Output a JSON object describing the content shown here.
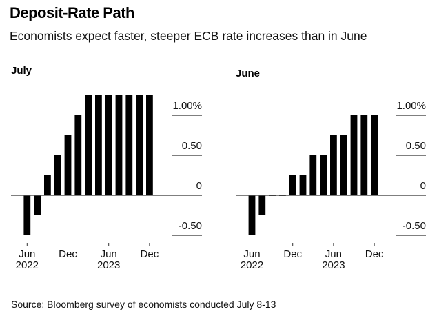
{
  "header": {
    "title": "Deposit-Rate Path",
    "subtitle": "Economists expect faster, steeper ECB rate increases than in June"
  },
  "footer": {
    "source": "Source: Bloomberg survey of economists conducted July 8-13"
  },
  "chart_data": [
    {
      "type": "bar",
      "title": "July",
      "xlabel": "",
      "ylabel": "",
      "unit": "%",
      "ylim": [
        -0.5,
        1.25
      ],
      "y_ticks": [
        {
          "value": 1.0,
          "label": "1.00%"
        },
        {
          "value": 0.5,
          "label": "0.50"
        },
        {
          "value": 0,
          "label": "0"
        },
        {
          "value": -0.5,
          "label": "-0.50"
        }
      ],
      "x_ticks": [
        {
          "index": 0,
          "label": "Jun",
          "sublabel": "2022"
        },
        {
          "index": 4,
          "label": "Dec",
          "sublabel": ""
        },
        {
          "index": 8,
          "label": "Jun",
          "sublabel": "2023"
        },
        {
          "index": 12,
          "label": "Dec",
          "sublabel": ""
        }
      ],
      "values": [
        -0.5,
        -0.25,
        0.25,
        0.5,
        0.75,
        1.0,
        1.25,
        1.25,
        1.25,
        1.25,
        1.25,
        1.25,
        1.25
      ],
      "bar_color": "#000000",
      "axis_position": "right",
      "grid": false
    },
    {
      "type": "bar",
      "title": "June",
      "xlabel": "",
      "ylabel": "",
      "unit": "%",
      "ylim": [
        -0.5,
        1.25
      ],
      "y_ticks": [
        {
          "value": 1.0,
          "label": "1.00%"
        },
        {
          "value": 0.5,
          "label": "0.50"
        },
        {
          "value": 0,
          "label": "0"
        },
        {
          "value": -0.5,
          "label": "-0.50"
        }
      ],
      "x_ticks": [
        {
          "index": 0,
          "label": "Jun",
          "sublabel": "2022"
        },
        {
          "index": 4,
          "label": "Dec",
          "sublabel": ""
        },
        {
          "index": 8,
          "label": "Jun",
          "sublabel": "2023"
        },
        {
          "index": 12,
          "label": "Dec",
          "sublabel": ""
        }
      ],
      "values": [
        -0.5,
        -0.25,
        0,
        0,
        0.25,
        0.25,
        0.5,
        0.5,
        0.75,
        0.75,
        1.0,
        1.0,
        1.0
      ],
      "bar_color": "#000000",
      "axis_position": "right",
      "grid": false
    }
  ]
}
